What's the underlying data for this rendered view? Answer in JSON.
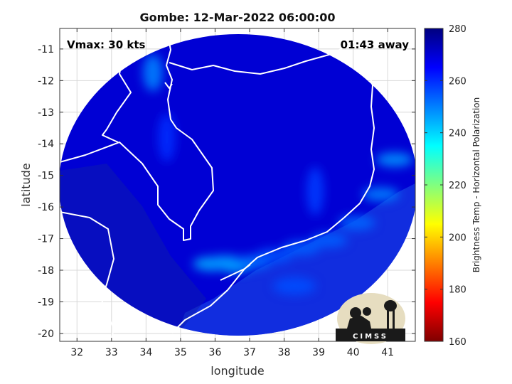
{
  "chart_data": {
    "type": "heatmap",
    "title": "Gombe: 12-Mar-2022 06:00:00",
    "xlabel": "longitude",
    "ylabel": "latitude",
    "xlim": [
      31.5,
      41.8
    ],
    "ylim": [
      -20.25,
      -10.35
    ],
    "x_ticks": [
      32,
      33,
      34,
      35,
      36,
      37,
      38,
      39,
      40,
      41
    ],
    "y_ticks": [
      -11,
      -12,
      -13,
      -14,
      -15,
      -16,
      -17,
      -18,
      -19,
      -20
    ],
    "grid": true,
    "colorbar": {
      "label": "Brightness Temp - Horizontal Polarization",
      "min": 160,
      "max": 280,
      "ticks": [
        160,
        180,
        200,
        220,
        240,
        260,
        280
      ],
      "colormap": [
        "#7f0000",
        "#ff0000",
        "#ff8000",
        "#ffff00",
        "#80ff80",
        "#00ffff",
        "#0080ff",
        "#0000ff",
        "#00007f"
      ]
    },
    "annotations": {
      "vmax": "Vmax: 30 kts",
      "time_away": "01:43 away"
    },
    "swath_center": [
      36.6,
      -15.8
    ],
    "warm_background_temp": 270,
    "features": [
      {
        "name": "coastal-band",
        "lon": 35.9,
        "lat": -17.8,
        "temp": 245
      },
      {
        "name": "coastal-band",
        "lon": 36.6,
        "lat": -17.85,
        "temp": 243
      },
      {
        "name": "coastal-band",
        "lon": 36.3,
        "lat": -17.75,
        "temp": 248
      },
      {
        "name": "coastal-band",
        "lon": 37.1,
        "lat": -17.75,
        "temp": 252
      },
      {
        "name": "coastal-band",
        "lon": 37.7,
        "lat": -17.55,
        "temp": 255
      },
      {
        "name": "coastal-band",
        "lon": 38.5,
        "lat": -17.3,
        "temp": 254
      },
      {
        "name": "coastal-band",
        "lon": 39.3,
        "lat": -17.05,
        "temp": 254
      },
      {
        "name": "coastal-band",
        "lon": 40.1,
        "lat": -16.5,
        "temp": 253
      },
      {
        "name": "coastal-band",
        "lon": 40.8,
        "lat": -15.6,
        "temp": 250
      },
      {
        "name": "coastal-band",
        "lon": 41.2,
        "lat": -14.5,
        "temp": 248
      },
      {
        "name": "lake-north",
        "lon": 34.2,
        "lat": -11.75,
        "temp": 250
      },
      {
        "name": "cloud-streak",
        "lon": 38.9,
        "lat": -15.5,
        "temp": 258
      },
      {
        "name": "cloud-streak",
        "lon": 34.6,
        "lat": -13.8,
        "temp": 260
      },
      {
        "name": "shelf-south",
        "lon": 38.3,
        "lat": -18.5,
        "temp": 256
      }
    ],
    "logo_text": "CIMSS"
  }
}
